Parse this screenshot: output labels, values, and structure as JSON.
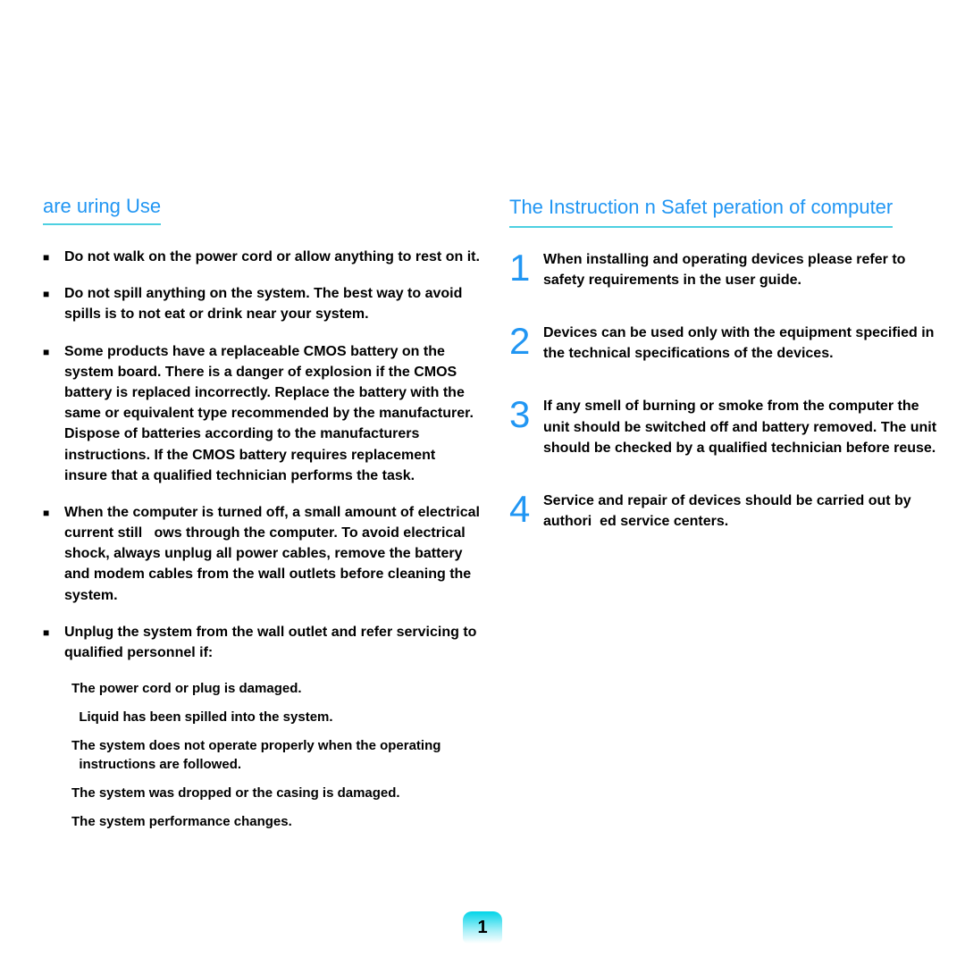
{
  "colors": {
    "heading": "#2196f3",
    "rule": "#4dd0e1",
    "number": "#2196f3",
    "text": "#000000",
    "page_badge_gradient_top": "#00d4e8",
    "page_badge_gradient_mid": "#a8f0f8",
    "page_badge_gradient_bottom": "#ffffff"
  },
  "typography": {
    "heading_fontsize": 22,
    "body_fontsize": 16,
    "sub_fontsize": 15,
    "number_fontsize": 42,
    "page_number_fontsize": 20,
    "font_family": "Arial, Helvetica, sans-serif"
  },
  "left": {
    "heading": "are uring Use",
    "bullets": [
      "Do not walk on the power cord or allow anything to rest on it.",
      "Do not spill anything on the system. The best way to avoid spills is to not eat or drink near your system.",
      "Some products have a replaceable CMOS battery on the system board. There is a danger of explosion if the CMOS battery is replaced incorrectly. Replace the battery with the same or equivalent type recommended by the manufacturer.\nDispose of batteries according to the manufacturers instructions. If the CMOS battery requires replacement insure that a qualified technician performs the task.",
      "When the computer is turned off, a small amount of electrical current still   ows through the computer. To avoid electrical shock, always unplug all power cables, remove the battery and modem cables from the wall outlets before cleaning the system.",
      "Unplug the system from the wall outlet and refer servicing to qualified personnel if:"
    ],
    "subitems": [
      "The power cord or plug is damaged.",
      "  Liquid has been spilled into the system.",
      "The system does not operate properly when the operating   instructions are followed.",
      "The system was dropped or the casing is damaged.",
      "The system performance changes."
    ]
  },
  "right": {
    "heading": "The Instruction n Safet peration of computer",
    "items": [
      {
        "n": "1",
        "text": "When installing and operating devices please refer to safety requirements in the user guide."
      },
      {
        "n": "2",
        "text": "Devices can be used only with the equipment specified in the technical specifications of the devices."
      },
      {
        "n": "3",
        "text": "If any smell of burning or smoke from the computer the unit should be switched off and battery removed. The unit should be checked by a qualified technician before reuse."
      },
      {
        "n": "4",
        "text": "Service and repair of devices should be carried out by authori  ed service centers."
      }
    ]
  },
  "page_number": "1"
}
